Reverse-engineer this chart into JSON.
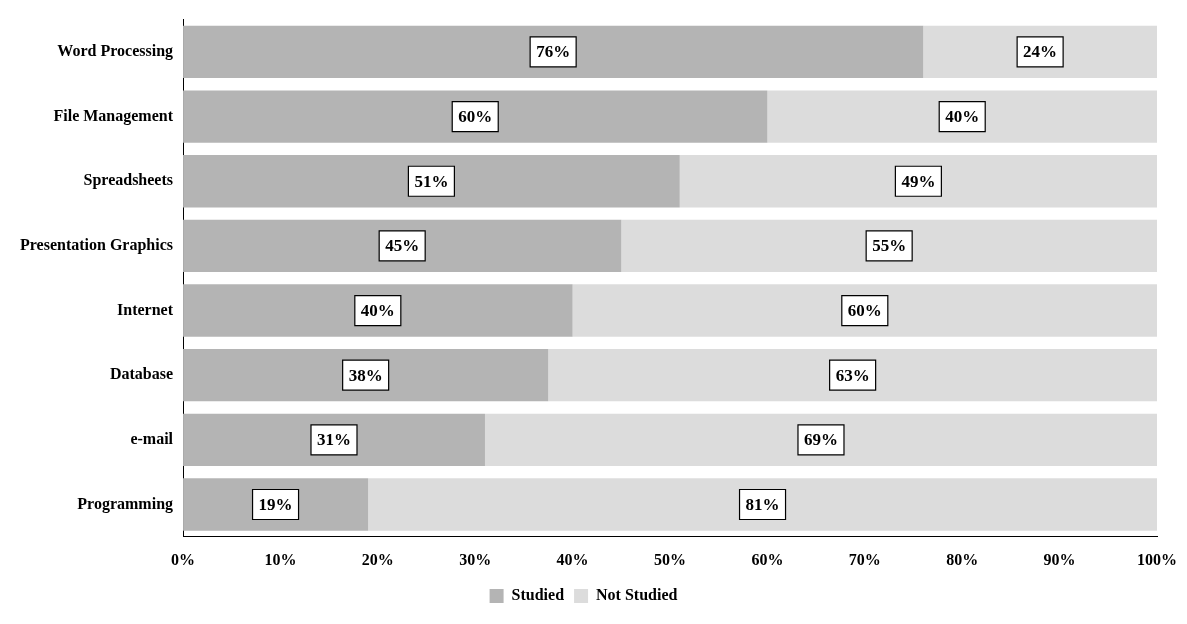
{
  "chart_data": {
    "type": "bar",
    "orientation": "horizontal",
    "stacked": true,
    "categories": [
      "Word Processing",
      "File Management",
      "Spreadsheets",
      "Presentation Graphics",
      "Internet",
      "Database",
      "e-mail",
      "Programming"
    ],
    "series": [
      {
        "name": "Studied",
        "color": "#b4b4b4",
        "values": [
          76,
          60,
          51,
          45,
          40,
          37.5,
          31,
          19
        ],
        "value_labels": [
          "76%",
          "60%",
          "51%",
          "45%",
          "40%",
          "38%",
          "31%",
          "19%"
        ]
      },
      {
        "name": "Not Studied",
        "color": "#dcdcdc",
        "values": [
          24,
          40,
          49,
          55,
          60,
          62.5,
          69,
          81
        ],
        "value_labels": [
          "24%",
          "40%",
          "49%",
          "55%",
          "60%",
          "63%",
          "69%",
          "81%"
        ]
      }
    ],
    "xlim": [
      0,
      100
    ],
    "xticks": [
      {
        "value": 0,
        "label": "0%"
      },
      {
        "value": 10,
        "label": "10%"
      },
      {
        "value": 20,
        "label": "20%"
      },
      {
        "value": 30,
        "label": "30%"
      },
      {
        "value": 40,
        "label": "40%"
      },
      {
        "value": 50,
        "label": "50%"
      },
      {
        "value": 60,
        "label": "60%"
      },
      {
        "value": 70,
        "label": "70%"
      },
      {
        "value": 80,
        "label": "80%"
      },
      {
        "value": 90,
        "label": "90%"
      },
      {
        "value": 100,
        "label": "100%"
      }
    ],
    "grid": false,
    "legend": "bottom"
  }
}
